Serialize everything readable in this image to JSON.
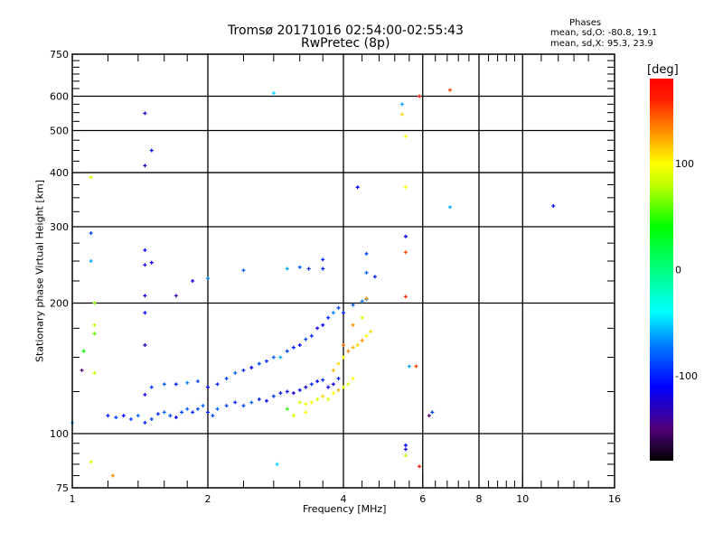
{
  "chart_data": {
    "type": "scatter",
    "title": "Tromsø 20171016 02:54:00-02:55:43",
    "subtitle": "RwPretec (8p)",
    "stats": {
      "heading": "Phases",
      "o_line": "mean, sd,O: -80.8, 19.1",
      "x_line": "mean, sd,X:  95.3, 23.9"
    },
    "xlabel": "Frequency [MHz]",
    "ylabel": "Stationary phase Virtual Height [km]",
    "xscale": "log",
    "yscale": "log",
    "xlim": [
      1,
      16
    ],
    "ylim": [
      75,
      750
    ],
    "xticks": [
      {
        "v": 1,
        "label": "1"
      },
      {
        "v": 2,
        "label": "2"
      },
      {
        "v": 4,
        "label": "4"
      },
      {
        "v": 6,
        "label": "6"
      },
      {
        "v": 8,
        "label": "8"
      },
      {
        "v": 10,
        "label": "10"
      },
      {
        "v": 16,
        "label": "16"
      }
    ],
    "xgrid": [
      2,
      4,
      6,
      8,
      10
    ],
    "xminor": [
      1.2,
      1.4,
      1.6,
      1.8,
      2.4,
      2.8,
      3.2,
      3.6,
      4.4,
      4.8,
      5.2,
      5.6,
      6.4,
      6.8,
      7.2,
      7.6,
      8.4,
      8.8,
      9.2,
      9.6,
      11,
      12,
      13,
      14
    ],
    "yticks": [
      {
        "v": 75,
        "label": "75"
      },
      {
        "v": 100,
        "label": "100"
      },
      {
        "v": 200,
        "label": "200"
      },
      {
        "v": 300,
        "label": "300"
      },
      {
        "v": 400,
        "label": "400"
      },
      {
        "v": 500,
        "label": "500"
      },
      {
        "v": 600,
        "label": "600"
      },
      {
        "v": 750,
        "label": "750"
      }
    ],
    "ygrid": [
      100,
      200,
      300,
      400,
      500,
      600
    ],
    "yminor": [
      80,
      85,
      90,
      95,
      125,
      150,
      175,
      225,
      250,
      275,
      325,
      350,
      375,
      425,
      450,
      475,
      525,
      550,
      575,
      625,
      650,
      675,
      700,
      725
    ],
    "colorbar": {
      "label": "[deg]",
      "range": [
        -180,
        180
      ],
      "ticks": [
        {
          "v": 100,
          "label": "100"
        },
        {
          "v": 0,
          "label": "0"
        },
        {
          "v": -100,
          "label": "-100"
        }
      ],
      "stops": [
        [
          -180,
          "#000000"
        ],
        [
          -150,
          "#50007a"
        ],
        [
          -110,
          "#0000ff"
        ],
        [
          -70,
          "#0080ff"
        ],
        [
          -40,
          "#00ffff"
        ],
        [
          0,
          "#00ff80"
        ],
        [
          40,
          "#00ff00"
        ],
        [
          80,
          "#c0ff00"
        ],
        [
          100,
          "#ffff00"
        ],
        [
          130,
          "#ff9000"
        ],
        [
          160,
          "#ff2000"
        ],
        [
          180,
          "#ff0000"
        ]
      ]
    },
    "points": [
      [
        1.0,
        106,
        -60
      ],
      [
        1.05,
        140,
        -150
      ],
      [
        1.06,
        155,
        40
      ],
      [
        1.1,
        290,
        -90
      ],
      [
        1.1,
        390,
        90
      ],
      [
        1.1,
        250,
        -60
      ],
      [
        1.12,
        200,
        70
      ],
      [
        1.12,
        178,
        80
      ],
      [
        1.12,
        170,
        60
      ],
      [
        1.12,
        138,
        80
      ],
      [
        1.1,
        86,
        90
      ],
      [
        1.23,
        80,
        130
      ],
      [
        1.45,
        548,
        -130
      ],
      [
        1.45,
        415,
        -130
      ],
      [
        1.5,
        450,
        -110
      ],
      [
        1.45,
        265,
        -110
      ],
      [
        1.45,
        245,
        -120
      ],
      [
        1.45,
        208,
        -120
      ],
      [
        1.45,
        190,
        -110
      ],
      [
        1.45,
        160,
        -130
      ],
      [
        1.45,
        123,
        -120
      ],
      [
        1.5,
        248,
        -120
      ],
      [
        1.7,
        208,
        -140
      ],
      [
        1.85,
        225,
        -120
      ],
      [
        2.0,
        228,
        -70
      ],
      [
        2.4,
        238,
        -80
      ],
      [
        2.8,
        610,
        -50
      ],
      [
        2.85,
        85,
        -50
      ],
      [
        3.0,
        240,
        -60
      ],
      [
        3.2,
        242,
        -80
      ],
      [
        3.35,
        240,
        -100
      ],
      [
        3.6,
        252,
        -100
      ],
      [
        3.6,
        240,
        -100
      ],
      [
        1.2,
        110,
        -100
      ],
      [
        1.25,
        109,
        -90
      ],
      [
        1.3,
        110,
        -110
      ],
      [
        1.35,
        108,
        -90
      ],
      [
        1.4,
        110,
        -80
      ],
      [
        1.45,
        106,
        -100
      ],
      [
        1.5,
        108,
        -90
      ],
      [
        1.55,
        111,
        -100
      ],
      [
        1.6,
        112,
        -80
      ],
      [
        1.65,
        110,
        -90
      ],
      [
        1.7,
        109,
        -110
      ],
      [
        1.75,
        112,
        -90
      ],
      [
        1.8,
        114,
        -80
      ],
      [
        1.85,
        112,
        -100
      ],
      [
        1.9,
        114,
        -90
      ],
      [
        1.95,
        116,
        -80
      ],
      [
        2.0,
        112,
        -100
      ],
      [
        2.05,
        110,
        -90
      ],
      [
        2.1,
        114,
        -80
      ],
      [
        2.2,
        116,
        -90
      ],
      [
        2.3,
        118,
        -100
      ],
      [
        2.4,
        116,
        -90
      ],
      [
        2.5,
        118,
        -80
      ],
      [
        2.6,
        120,
        -100
      ],
      [
        2.7,
        119,
        -110
      ],
      [
        2.8,
        122,
        -90
      ],
      [
        2.9,
        124,
        -100
      ],
      [
        3.0,
        125,
        -110
      ],
      [
        3.1,
        124,
        -120
      ],
      [
        3.2,
        126,
        -110
      ],
      [
        3.3,
        128,
        -120
      ],
      [
        3.4,
        130,
        -100
      ],
      [
        3.5,
        132,
        -110
      ],
      [
        3.6,
        133,
        -100
      ],
      [
        3.7,
        128,
        -110
      ],
      [
        3.8,
        130,
        -120
      ],
      [
        3.9,
        134,
        -100
      ],
      [
        1.5,
        128,
        -90
      ],
      [
        1.6,
        130,
        -80
      ],
      [
        1.7,
        130,
        -100
      ],
      [
        1.8,
        131,
        -70
      ],
      [
        1.9,
        132,
        -90
      ],
      [
        2.0,
        128,
        -110
      ],
      [
        2.1,
        130,
        -100
      ],
      [
        2.2,
        134,
        -90
      ],
      [
        2.3,
        138,
        -80
      ],
      [
        2.4,
        140,
        -100
      ],
      [
        2.5,
        142,
        -110
      ],
      [
        2.6,
        145,
        -90
      ],
      [
        2.7,
        147,
        -100
      ],
      [
        2.8,
        150,
        -80
      ],
      [
        2.9,
        150,
        -60
      ],
      [
        3.0,
        155,
        -90
      ],
      [
        3.1,
        158,
        -100
      ],
      [
        3.2,
        160,
        -110
      ],
      [
        3.3,
        165,
        -90
      ],
      [
        3.4,
        168,
        -100
      ],
      [
        3.5,
        175,
        -120
      ],
      [
        3.6,
        178,
        -110
      ],
      [
        3.7,
        185,
        -100
      ],
      [
        3.8,
        190,
        -70
      ],
      [
        3.9,
        195,
        -90
      ],
      [
        4.0,
        190,
        -100
      ],
      [
        4.2,
        198,
        -80
      ],
      [
        4.4,
        202,
        -70
      ],
      [
        4.5,
        204,
        -60
      ],
      [
        3.2,
        118,
        90
      ],
      [
        3.3,
        117,
        95
      ],
      [
        3.4,
        118,
        100
      ],
      [
        3.5,
        120,
        85
      ],
      [
        3.6,
        122,
        110
      ],
      [
        3.7,
        120,
        90
      ],
      [
        3.8,
        124,
        100
      ],
      [
        3.9,
        126,
        120
      ],
      [
        4.0,
        128,
        95
      ],
      [
        4.1,
        130,
        90
      ],
      [
        4.2,
        134,
        100
      ],
      [
        3.8,
        140,
        120
      ],
      [
        3.9,
        145,
        110
      ],
      [
        4.0,
        150,
        100
      ],
      [
        4.1,
        155,
        130
      ],
      [
        4.2,
        158,
        120
      ],
      [
        4.3,
        160,
        110
      ],
      [
        4.4,
        164,
        130
      ],
      [
        4.5,
        168,
        100
      ],
      [
        4.6,
        172,
        110
      ],
      [
        4.0,
        160,
        140
      ],
      [
        4.2,
        178,
        130
      ],
      [
        4.4,
        185,
        90
      ],
      [
        3.3,
        112,
        100
      ],
      [
        3.1,
        110,
        90
      ],
      [
        3.0,
        114,
        50
      ],
      [
        4.5,
        205,
        130
      ],
      [
        4.7,
        230,
        -100
      ],
      [
        4.5,
        260,
        -90
      ],
      [
        4.5,
        235,
        -80
      ],
      [
        4.3,
        370,
        -110
      ],
      [
        5.4,
        575,
        -60
      ],
      [
        5.4,
        545,
        110
      ],
      [
        5.5,
        485,
        100
      ],
      [
        5.5,
        370,
        100
      ],
      [
        5.5,
        285,
        -110
      ],
      [
        5.5,
        262,
        150
      ],
      [
        5.5,
        207,
        160
      ],
      [
        5.8,
        143,
        150
      ],
      [
        5.9,
        600,
        160
      ],
      [
        5.9,
        84,
        160
      ],
      [
        5.5,
        94,
        -110
      ],
      [
        5.5,
        92,
        -120
      ],
      [
        5.5,
        89,
        80
      ],
      [
        6.2,
        110,
        -150
      ],
      [
        6.3,
        112,
        -90
      ],
      [
        6.9,
        620,
        150
      ],
      [
        6.9,
        333,
        -60
      ],
      [
        11.7,
        335,
        -110
      ],
      [
        5.6,
        143,
        -60
      ]
    ]
  }
}
